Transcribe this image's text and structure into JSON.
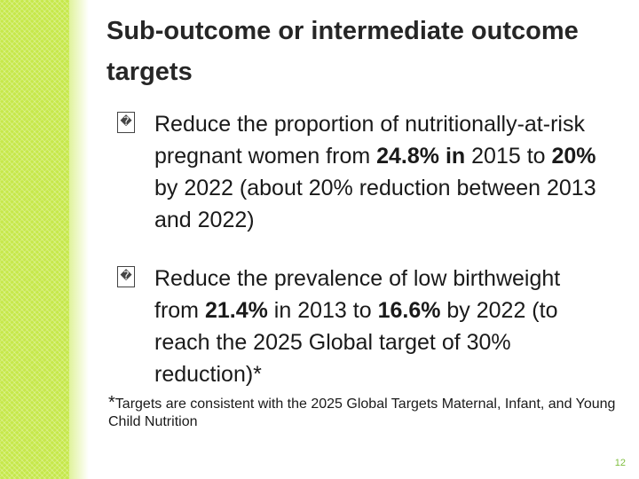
{
  "title": "Sub-outcome or intermediate outcome targets",
  "bullets": [
    {
      "marker": "�",
      "parts": [
        {
          "text": "Reduce the proportion of nutritionally-at-risk pregnant women from ",
          "bold": false
        },
        {
          "text": "24.8% in",
          "bold": true
        },
        {
          "text": " 2015 to ",
          "bold": false
        },
        {
          "text": "20%",
          "bold": true
        },
        {
          "text": " by 2022 (about 20% reduction between 2013 and 2022)",
          "bold": false
        }
      ]
    },
    {
      "marker": "�",
      "parts": [
        {
          "text": "Reduce the prevalence of low birthweight from ",
          "bold": false
        },
        {
          "text": "21.4%",
          "bold": true
        },
        {
          "text": " in 2013 to ",
          "bold": false
        },
        {
          "text": "16.6%",
          "bold": true
        },
        {
          "text": " by 2022 (to reach the 2025 Global target of 30% reduction)*",
          "bold": false
        }
      ]
    }
  ],
  "footnote": {
    "star": "*",
    "text": "Targets are consistent with the 2025 Global Targets  Maternal, Infant, and Young Child Nutrition"
  },
  "page_number": "12",
  "colors": {
    "side_band": "#c6e84a",
    "page_number": "#7fbf3f"
  }
}
